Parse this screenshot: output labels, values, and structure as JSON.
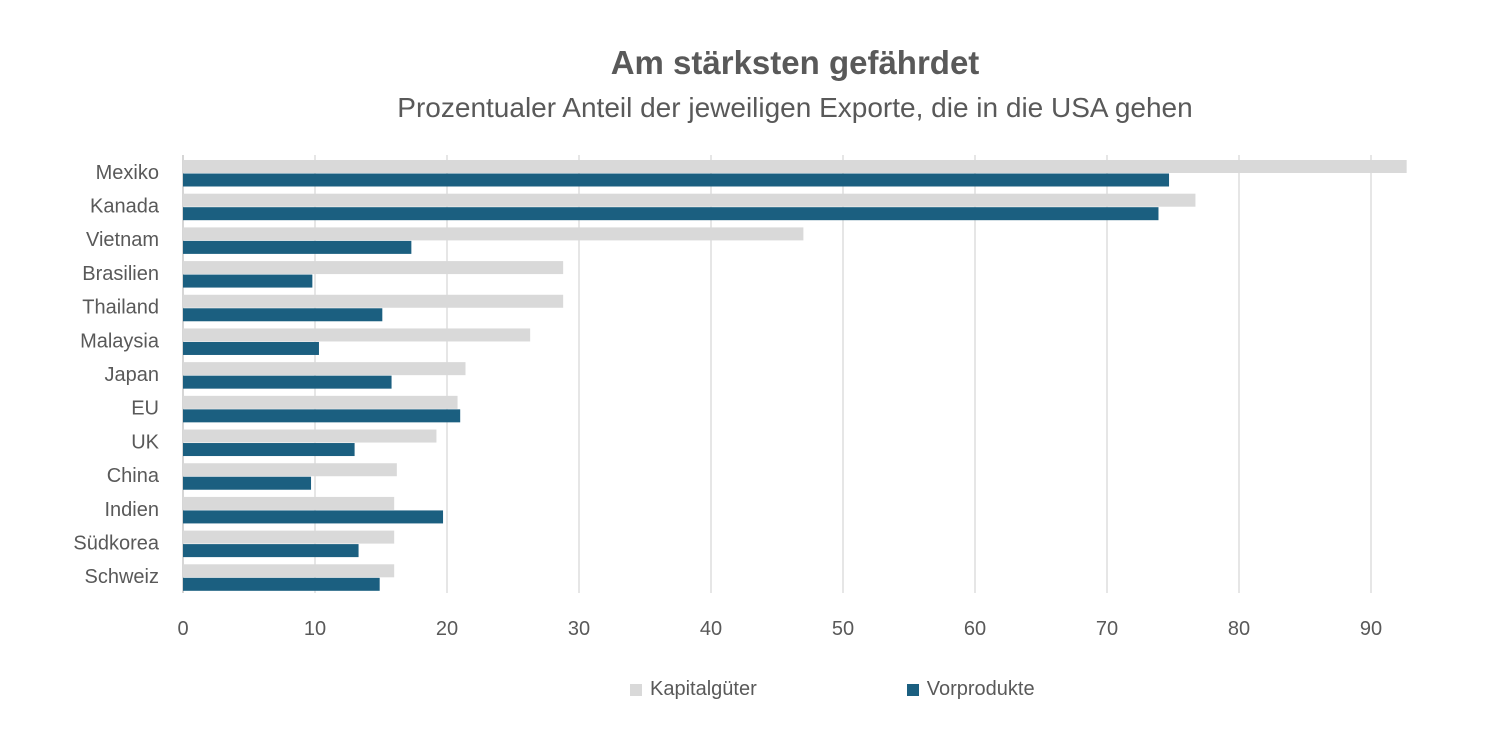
{
  "chart_data": {
    "type": "bar",
    "orientation": "horizontal",
    "title": "Am stärksten gefährdet",
    "subtitle": "Prozentualer Anteil der jeweiligen Exporte, die in die USA gehen",
    "categories": [
      "Mexiko",
      "Kanada",
      "Vietnam",
      "Brasilien",
      "Thailand",
      "Malaysia",
      "Japan",
      "EU",
      "UK",
      "China",
      "Indien",
      "Südkorea",
      "Schweiz"
    ],
    "series": [
      {
        "name": "Kapitalgüter",
        "color": "#d9d9d9",
        "values": [
          92.7,
          76.7,
          47.0,
          28.8,
          28.8,
          26.3,
          21.4,
          20.8,
          19.2,
          16.2,
          16.0,
          16.0,
          16.0
        ]
      },
      {
        "name": "Vorprodukte",
        "color": "#1b5f80",
        "values": [
          74.7,
          73.9,
          17.3,
          9.8,
          15.1,
          10.3,
          15.8,
          21.0,
          13.0,
          9.7,
          19.7,
          13.3,
          14.9
        ]
      }
    ],
    "xlim": [
      0,
      90
    ],
    "xticks": [
      0,
      10,
      20,
      30,
      40,
      50,
      60,
      70,
      80,
      90
    ],
    "grid": true,
    "legend_position": "bottom"
  }
}
